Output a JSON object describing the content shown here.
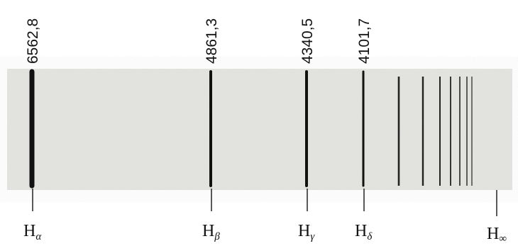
{
  "lines": [
    {
      "wavelength": "6562,8",
      "symbol": "H",
      "subscript": "α"
    },
    {
      "wavelength": "4861,3",
      "symbol": "H",
      "subscript": "β"
    },
    {
      "wavelength": "4340,5",
      "symbol": "H",
      "subscript": "γ"
    },
    {
      "wavelength": "4101,7",
      "symbol": "H",
      "subscript": "δ"
    }
  ],
  "limit": {
    "symbol": "H",
    "subscript": "∞"
  }
}
